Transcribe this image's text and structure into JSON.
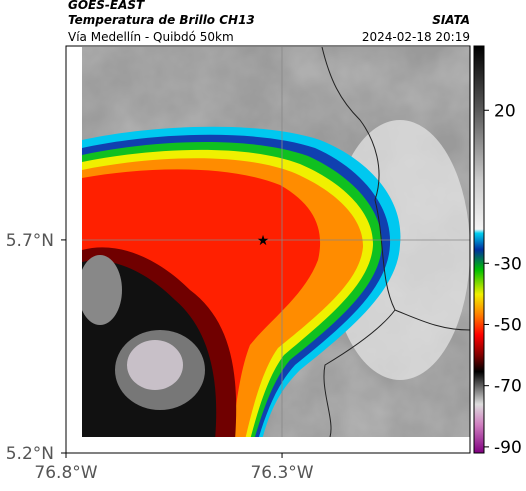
{
  "header": {
    "title": "GOES-EAST",
    "subtitle": "Temperatura de Brillo CH13",
    "source": "SIATA",
    "route": "Vía Medellín - Quibdó 50km",
    "datetime": "2024-02-18 20:19"
  },
  "map": {
    "xlim": [
      -76.8,
      -75.865
    ],
    "ylim": [
      5.2,
      6.155
    ],
    "xticks": [
      {
        "value": -76.8,
        "label": "76.8°W"
      },
      {
        "value": -76.3,
        "label": "76.3°W"
      }
    ],
    "yticks": [
      {
        "value": 5.7,
        "label": "5.7°N"
      },
      {
        "value": 5.2,
        "label": "5.2°N"
      }
    ]
  },
  "colorbar": {
    "lim": [
      -92,
      41
    ],
    "ticks": [
      20,
      -30,
      -50,
      -70,
      -90
    ]
  }
}
